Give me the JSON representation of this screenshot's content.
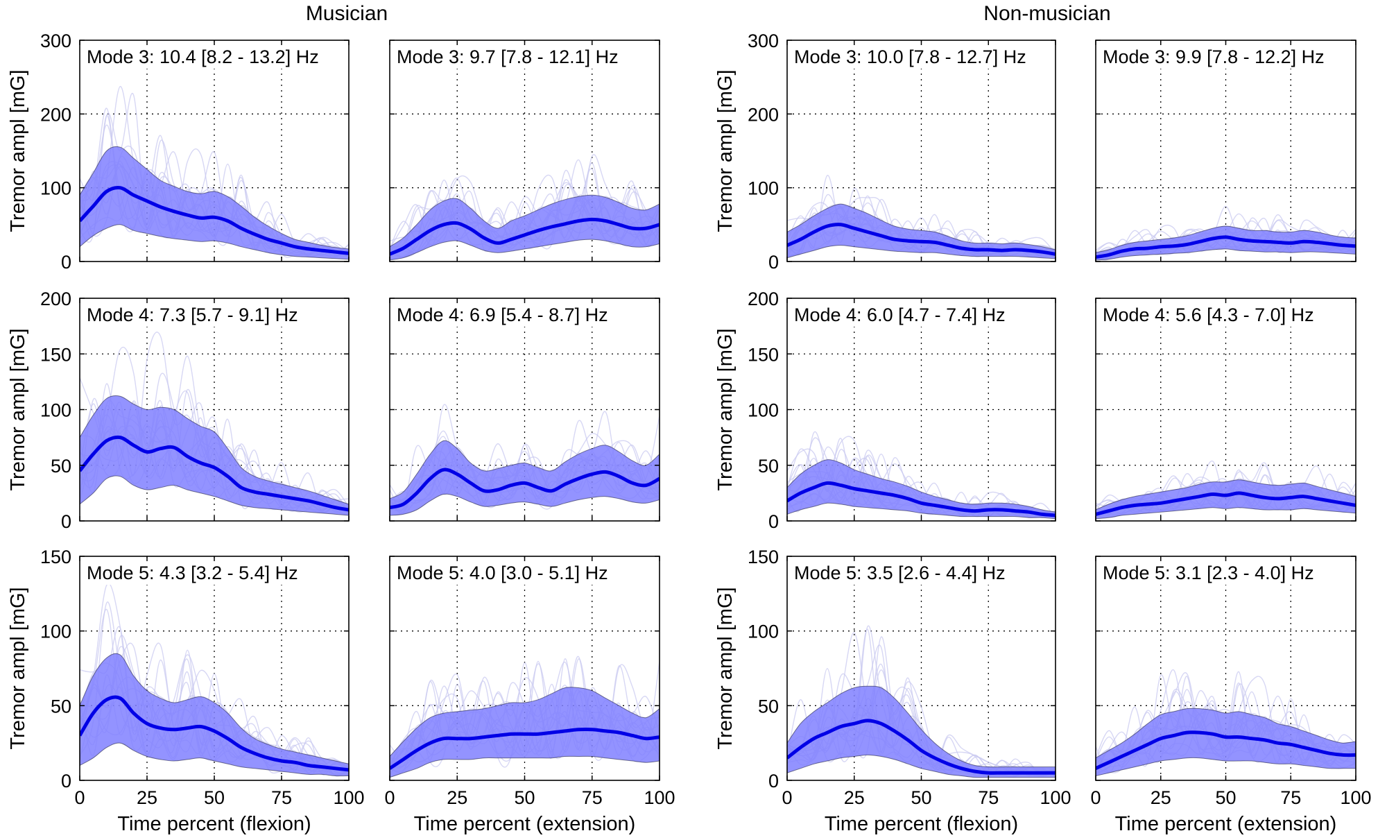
{
  "chart_data": {
    "type": "line",
    "groups": [
      {
        "title": "Musician",
        "columns": [
          "flexion",
          "extension"
        ]
      },
      {
        "title": "Non-musician",
        "columns": [
          "flexion",
          "extension"
        ]
      }
    ],
    "xlabel_flexion": "Time percent (flexion)",
    "xlabel_extension": "Time percent (extension)",
    "ylabel": "Tremor ampl [mG]",
    "xlim": [
      0,
      100
    ],
    "xticks": [
      0,
      25,
      50,
      75,
      100
    ],
    "rows": [
      {
        "mode": 3,
        "ylim": [
          0,
          300
        ],
        "yticks": [
          0,
          100,
          200,
          300
        ]
      },
      {
        "mode": 4,
        "ylim": [
          0,
          200
        ],
        "yticks": [
          0,
          50,
          100,
          150,
          200
        ]
      },
      {
        "mode": 5,
        "ylim": [
          0,
          150
        ],
        "yticks": [
          0,
          50,
          100,
          150
        ]
      }
    ],
    "series_x": [
      0,
      5,
      10,
      15,
      20,
      25,
      30,
      35,
      40,
      45,
      50,
      55,
      60,
      65,
      70,
      75,
      80,
      85,
      90,
      95,
      100
    ],
    "panels": [
      {
        "group": 0,
        "col": 0,
        "row": 0,
        "label": "Mode 3: 10.4 [8.2 - 13.2] Hz",
        "mean": [
          55,
          75,
          95,
          100,
          90,
          82,
          74,
          68,
          63,
          59,
          60,
          55,
          45,
          37,
          30,
          25,
          20,
          17,
          15,
          13,
          11
        ],
        "lower": [
          20,
          35,
          45,
          50,
          42,
          38,
          34,
          31,
          29,
          27,
          28,
          25,
          20,
          16,
          12,
          9,
          7,
          6,
          5,
          4,
          3
        ],
        "upper": [
          90,
          120,
          150,
          155,
          140,
          125,
          110,
          102,
          95,
          92,
          95,
          88,
          75,
          60,
          48,
          38,
          30,
          26,
          22,
          19,
          17
        ]
      },
      {
        "group": 0,
        "col": 1,
        "row": 0,
        "label": "Mode 3: 9.7 [7.8 - 12.1] Hz",
        "mean": [
          10,
          18,
          30,
          42,
          50,
          52,
          44,
          32,
          25,
          30,
          36,
          42,
          47,
          51,
          55,
          57,
          55,
          50,
          45,
          45,
          50
        ],
        "lower": [
          2,
          5,
          12,
          20,
          26,
          28,
          22,
          15,
          12,
          14,
          17,
          20,
          23,
          26,
          29,
          30,
          28,
          24,
          20,
          20,
          24
        ],
        "upper": [
          20,
          32,
          50,
          70,
          82,
          85,
          72,
          55,
          45,
          55,
          62,
          70,
          78,
          84,
          88,
          90,
          87,
          80,
          72,
          70,
          78
        ]
      },
      {
        "group": 0,
        "col": 0,
        "row": 1,
        "label": "Mode 4: 7.3 [5.7 - 9.1] Hz",
        "mean": [
          45,
          60,
          72,
          75,
          68,
          62,
          65,
          66,
          58,
          52,
          48,
          40,
          30,
          26,
          24,
          22,
          20,
          18,
          15,
          12,
          10
        ],
        "lower": [
          15,
          25,
          38,
          40,
          32,
          28,
          30,
          32,
          28,
          25,
          22,
          18,
          14,
          12,
          11,
          10,
          9,
          8,
          7,
          6,
          5
        ],
        "upper": [
          75,
          95,
          110,
          112,
          105,
          100,
          102,
          100,
          92,
          85,
          80,
          65,
          48,
          40,
          36,
          33,
          30,
          27,
          23,
          19,
          15
        ]
      },
      {
        "group": 0,
        "col": 1,
        "row": 1,
        "label": "Mode 4: 6.9 [5.4 - 8.7] Hz",
        "mean": [
          12,
          15,
          25,
          38,
          46,
          42,
          34,
          27,
          28,
          32,
          34,
          30,
          27,
          33,
          38,
          42,
          44,
          40,
          34,
          32,
          38
        ],
        "lower": [
          5,
          6,
          10,
          18,
          24,
          22,
          17,
          13,
          14,
          16,
          17,
          15,
          13,
          16,
          19,
          21,
          22,
          20,
          17,
          16,
          19
        ],
        "upper": [
          20,
          26,
          42,
          60,
          72,
          65,
          52,
          45,
          47,
          50,
          52,
          48,
          45,
          53,
          60,
          65,
          68,
          62,
          54,
          50,
          60
        ]
      },
      {
        "group": 0,
        "col": 0,
        "row": 2,
        "label": "Mode 5: 4.3 [3.2 - 5.4] Hz",
        "mean": [
          30,
          45,
          54,
          55,
          45,
          38,
          35,
          34,
          35,
          36,
          33,
          28,
          22,
          18,
          15,
          13,
          12,
          10,
          9,
          8,
          7
        ],
        "lower": [
          10,
          15,
          22,
          25,
          20,
          16,
          14,
          13,
          14,
          15,
          13,
          11,
          9,
          8,
          7,
          6,
          5,
          4,
          4,
          3,
          3
        ],
        "upper": [
          50,
          70,
          82,
          84,
          70,
          60,
          55,
          52,
          54,
          56,
          52,
          45,
          35,
          28,
          24,
          21,
          19,
          17,
          15,
          13,
          11
        ]
      },
      {
        "group": 0,
        "col": 1,
        "row": 2,
        "label": "Mode 5: 4.0 [3.0 - 5.1] Hz",
        "mean": [
          8,
          14,
          20,
          25,
          28,
          28,
          28,
          29,
          30,
          31,
          31,
          31,
          32,
          33,
          34,
          34,
          33,
          32,
          30,
          28,
          29
        ],
        "lower": [
          2,
          5,
          8,
          12,
          14,
          14,
          14,
          15,
          15,
          15,
          15,
          15,
          15,
          16,
          16,
          16,
          15,
          14,
          13,
          12,
          13
        ],
        "upper": [
          16,
          26,
          35,
          42,
          45,
          46,
          47,
          48,
          50,
          52,
          52,
          54,
          58,
          62,
          62,
          60,
          55,
          50,
          45,
          42,
          48
        ]
      },
      {
        "group": 1,
        "col": 0,
        "row": 0,
        "label": "Mode 3: 10.0 [7.8 - 12.7] Hz",
        "mean": [
          22,
          30,
          40,
          48,
          50,
          45,
          40,
          35,
          30,
          28,
          27,
          26,
          22,
          18,
          16,
          16,
          15,
          16,
          15,
          13,
          10
        ],
        "lower": [
          5,
          10,
          15,
          20,
          22,
          20,
          18,
          16,
          14,
          13,
          12,
          12,
          10,
          8,
          7,
          7,
          7,
          7,
          6,
          5,
          4
        ],
        "upper": [
          40,
          50,
          62,
          72,
          78,
          72,
          65,
          56,
          48,
          44,
          42,
          40,
          34,
          28,
          25,
          25,
          24,
          25,
          23,
          20,
          16
        ]
      },
      {
        "group": 1,
        "col": 1,
        "row": 0,
        "label": "Mode 3: 9.9 [7.8 - 12.2] Hz",
        "mean": [
          6,
          9,
          14,
          17,
          18,
          20,
          21,
          23,
          27,
          31,
          33,
          30,
          28,
          27,
          26,
          25,
          27,
          26,
          24,
          22,
          21
        ],
        "lower": [
          2,
          3,
          6,
          8,
          9,
          10,
          11,
          12,
          14,
          16,
          17,
          15,
          14,
          13,
          13,
          12,
          13,
          13,
          12,
          11,
          10
        ],
        "upper": [
          12,
          16,
          22,
          26,
          28,
          30,
          32,
          35,
          40,
          45,
          48,
          45,
          42,
          42,
          40,
          40,
          42,
          40,
          36,
          33,
          32
        ]
      },
      {
        "group": 1,
        "col": 0,
        "row": 1,
        "label": "Mode 4: 6.0 [4.7 - 7.4] Hz",
        "mean": [
          18,
          25,
          30,
          34,
          32,
          29,
          27,
          25,
          23,
          20,
          16,
          14,
          12,
          10,
          9,
          10,
          10,
          9,
          8,
          6,
          5
        ],
        "lower": [
          6,
          10,
          13,
          16,
          15,
          13,
          12,
          11,
          10,
          9,
          7,
          6,
          5,
          4,
          4,
          4,
          4,
          4,
          3,
          3,
          2
        ],
        "upper": [
          30,
          42,
          50,
          55,
          52,
          46,
          42,
          38,
          35,
          31,
          26,
          22,
          19,
          16,
          15,
          16,
          16,
          15,
          13,
          10,
          8
        ]
      },
      {
        "group": 1,
        "col": 1,
        "row": 1,
        "label": "Mode 4: 5.6 [4.3 - 7.0] Hz",
        "mean": [
          6,
          9,
          12,
          14,
          15,
          16,
          18,
          20,
          22,
          24,
          23,
          25,
          23,
          21,
          20,
          21,
          22,
          20,
          18,
          16,
          14
        ],
        "lower": [
          2,
          3,
          5,
          6,
          7,
          8,
          9,
          10,
          11,
          12,
          11,
          12,
          11,
          10,
          10,
          10,
          11,
          10,
          9,
          8,
          7
        ],
        "upper": [
          10,
          15,
          19,
          22,
          24,
          26,
          28,
          30,
          33,
          35,
          35,
          37,
          35,
          33,
          32,
          33,
          34,
          31,
          28,
          25,
          22
        ]
      },
      {
        "group": 1,
        "col": 0,
        "row": 2,
        "label": "Mode 5: 3.5 [2.6 - 4.4] Hz",
        "mean": [
          15,
          22,
          28,
          32,
          36,
          38,
          40,
          38,
          33,
          27,
          20,
          15,
          11,
          8,
          6,
          5,
          5,
          5,
          5,
          5,
          5
        ],
        "lower": [
          5,
          8,
          11,
          13,
          15,
          16,
          17,
          16,
          14,
          11,
          8,
          6,
          4,
          3,
          2,
          2,
          2,
          2,
          2,
          2,
          2
        ],
        "upper": [
          25,
          38,
          46,
          52,
          58,
          62,
          63,
          62,
          55,
          45,
          34,
          25,
          18,
          13,
          10,
          9,
          9,
          9,
          9,
          9,
          9
        ]
      },
      {
        "group": 1,
        "col": 1,
        "row": 2,
        "label": "Mode 5: 3.1 [2.3 - 4.0] Hz",
        "mean": [
          8,
          12,
          16,
          20,
          24,
          28,
          30,
          32,
          32,
          31,
          29,
          29,
          28,
          27,
          25,
          24,
          22,
          20,
          18,
          17,
          17
        ],
        "lower": [
          3,
          5,
          7,
          9,
          11,
          13,
          14,
          15,
          15,
          14,
          13,
          13,
          13,
          12,
          11,
          11,
          10,
          9,
          8,
          8,
          8
        ],
        "upper": [
          15,
          20,
          25,
          31,
          38,
          44,
          46,
          48,
          48,
          47,
          45,
          46,
          44,
          42,
          38,
          36,
          33,
          30,
          27,
          25,
          26
        ]
      }
    ]
  }
}
